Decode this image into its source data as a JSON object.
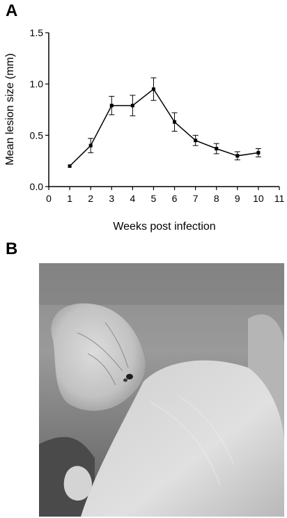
{
  "panels": {
    "a_label": "A",
    "b_label": "B"
  },
  "chart_data": {
    "type": "line",
    "title": "",
    "xlabel": "Weeks post infection",
    "ylabel": "Mean lesion size (mm)",
    "xlim": [
      0,
      11
    ],
    "ylim": [
      0,
      1.5
    ],
    "x_ticks": [
      "0",
      "1",
      "2",
      "3",
      "4",
      "5",
      "6",
      "7",
      "8",
      "9",
      "10",
      "11"
    ],
    "y_ticks": [
      "0.0",
      "0.5",
      "1.0",
      "1.5"
    ],
    "grid": false,
    "series": [
      {
        "x": [
          1,
          2,
          3,
          4,
          5,
          6,
          7,
          8,
          9,
          10
        ],
        "y": [
          0.2,
          0.4,
          0.79,
          0.79,
          0.95,
          0.63,
          0.45,
          0.37,
          0.3,
          0.33
        ],
        "err": [
          0.0,
          0.07,
          0.09,
          0.1,
          0.11,
          0.09,
          0.05,
          0.05,
          0.04,
          0.04
        ]
      }
    ]
  },
  "photo": {
    "subject": "hairless mouse ear with lesion"
  }
}
